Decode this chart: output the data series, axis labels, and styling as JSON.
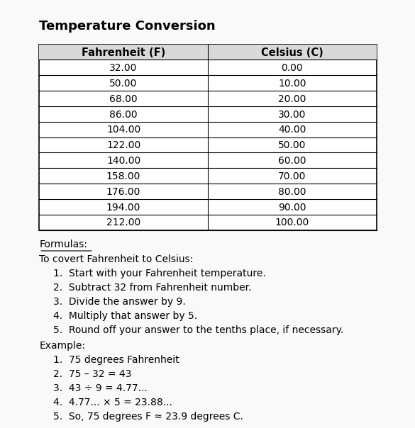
{
  "title": "Temperature Conversion",
  "col_headers": [
    "Fahrenheit (F)",
    "Celsius (C)"
  ],
  "fahrenheit": [
    "32.00",
    "50.00",
    "68.00",
    "86.00",
    "104.00",
    "122.00",
    "140.00",
    "158.00",
    "176.00",
    "194.00",
    "212.00"
  ],
  "celsius": [
    "0.00",
    "10.00",
    "20.00",
    "30.00",
    "40.00",
    "50.00",
    "60.00",
    "70.00",
    "80.00",
    "90.00",
    "100.00"
  ],
  "formulas_label": "Formulas:",
  "formulas_intro": "To covert Fahrenheit to Celsius:",
  "formulas_steps": [
    "1.  Start with your Fahrenheit temperature.",
    "2.  Subtract 32 from Fahrenheit number.",
    "3.  Divide the answer by 9.",
    "4.  Multiply that answer by 5.",
    "5.  Round off your answer to the tenths place, if necessary."
  ],
  "example_label": "Example:",
  "example_steps": [
    "1.  75 degrees Fahrenheit",
    "2.  75 – 32 = 43",
    "3.  43 ÷ 9 = 4.77...",
    "4.  4.77... × 5 = 23.88...",
    "5.  So, 75 degrees F ≈ 23.9 degrees C."
  ],
  "bg_color": "#f9f9f9",
  "table_border_color": "#000000",
  "header_bg": "#d9d9d9",
  "text_color": "#000000",
  "title_fontsize": 13,
  "body_fontsize": 10,
  "header_fontsize": 10.5
}
